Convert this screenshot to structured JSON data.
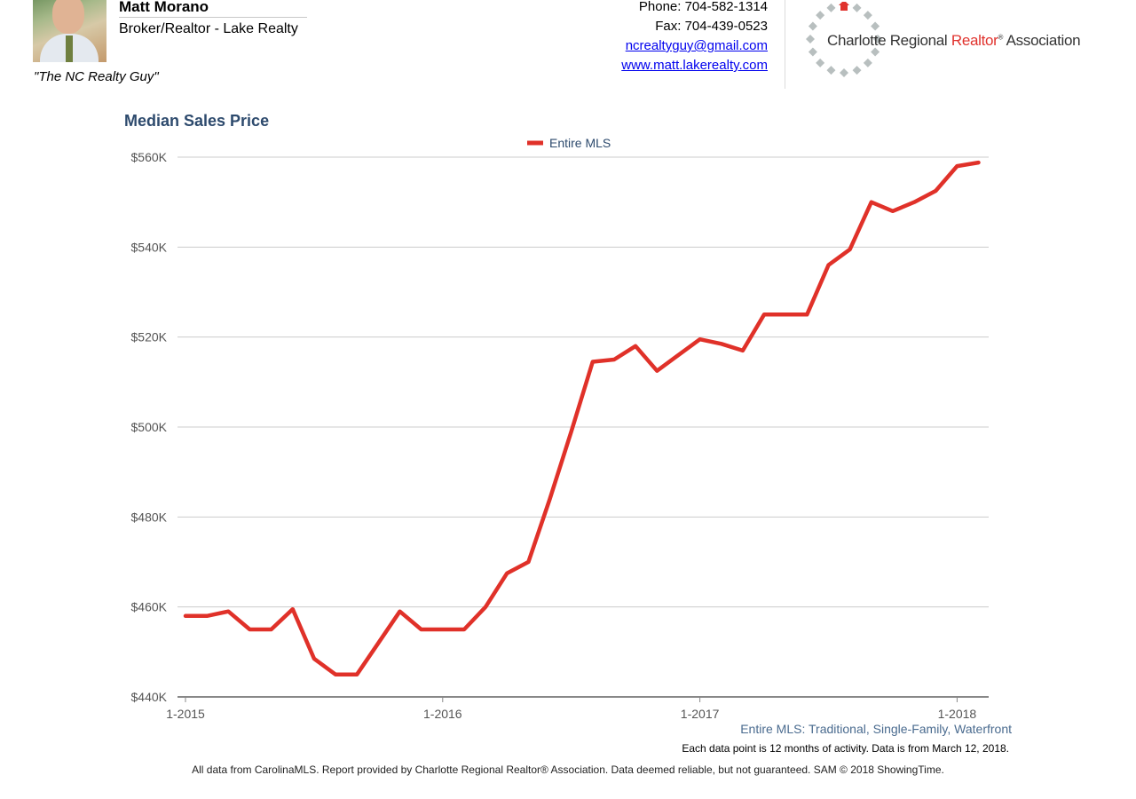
{
  "agent": {
    "name": "Matt Morano",
    "title": "Broker/Realtor - Lake Realty",
    "tagline": "\"The NC Realty Guy\""
  },
  "contact": {
    "phone": "Phone: 704-582-1314",
    "fax": "Fax: 704-439-0523",
    "email": "ncrealtyguy@gmail.com",
    "website": "www.matt.lakerealty.com"
  },
  "logo": {
    "prefix": "Charlotte Regional ",
    "highlight": "Realtor",
    "mark": "®",
    "suffix": " Association",
    "accent_color": "#e0322d",
    "dot_color": "#b8bfbf"
  },
  "chart_data": {
    "type": "line",
    "title": "Median Sales Price",
    "legend_position": "top-center",
    "grid": true,
    "ylim": [
      440000,
      560000
    ],
    "yticks": [
      "$440K",
      "$460K",
      "$480K",
      "$500K",
      "$520K",
      "$540K",
      "$560K"
    ],
    "xtick_labels": [
      "1-2015",
      "1-2016",
      "1-2017",
      "1-2018"
    ],
    "x": [
      "2015-01",
      "2015-02",
      "2015-03",
      "2015-04",
      "2015-05",
      "2015-06",
      "2015-07",
      "2015-08",
      "2015-09",
      "2015-10",
      "2015-11",
      "2015-12",
      "2016-01",
      "2016-02",
      "2016-03",
      "2016-04",
      "2016-05",
      "2016-06",
      "2016-07",
      "2016-08",
      "2016-09",
      "2016-10",
      "2016-11",
      "2016-12",
      "2017-01",
      "2017-02",
      "2017-03",
      "2017-04",
      "2017-05",
      "2017-06",
      "2017-07",
      "2017-08",
      "2017-09",
      "2017-10",
      "2017-11",
      "2017-12",
      "2018-01",
      "2018-02"
    ],
    "series": [
      {
        "name": "Entire MLS",
        "color": "#e03129",
        "values": [
          458000,
          458000,
          459000,
          455000,
          455000,
          459500,
          448500,
          445000,
          445000,
          452000,
          459000,
          455000,
          455000,
          455000,
          460000,
          467500,
          470000,
          484000,
          499000,
          514500,
          515000,
          518000,
          512500,
          516000,
          519500,
          518500,
          517000,
          525000,
          525000,
          525000,
          536000,
          539500,
          550000,
          548000,
          550000,
          552500,
          558000,
          558800
        ]
      }
    ],
    "subtitle": "Entire MLS: Traditional, Single-Family, Waterfront",
    "note": "Each data point is 12 months of activity. Data is from March 12, 2018."
  },
  "footer": "All data from CarolinaMLS. Report provided by Charlotte Regional Realtor® Association. Data deemed reliable, but not guaranteed. SAM © 2018 ShowingTime."
}
